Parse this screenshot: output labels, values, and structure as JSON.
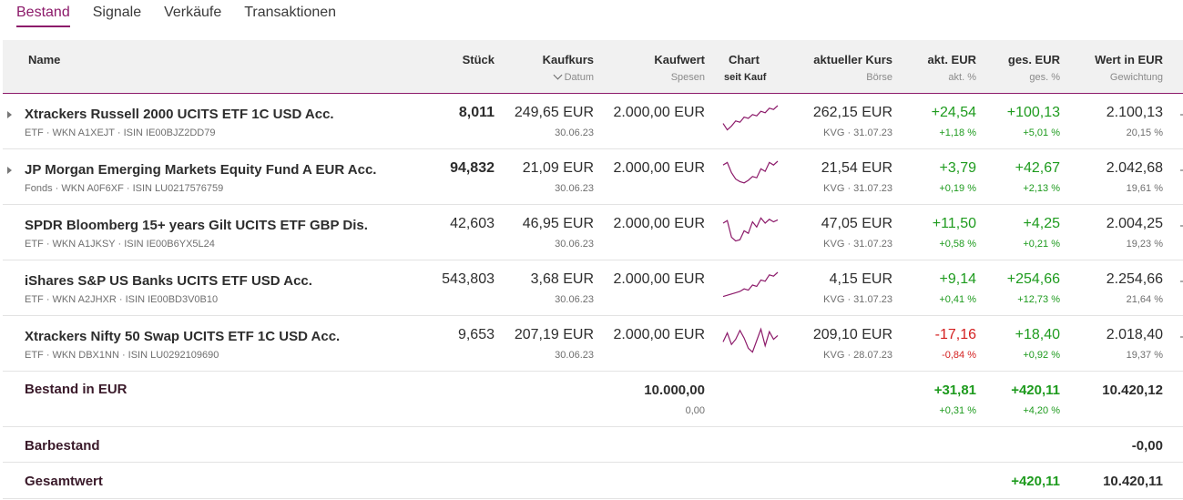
{
  "tabs": [
    {
      "label": "Bestand",
      "active": true
    },
    {
      "label": "Signale"
    },
    {
      "label": "Verkäufe"
    },
    {
      "label": "Transaktionen"
    }
  ],
  "header": {
    "name": "Name",
    "stueck": "Stück",
    "kaufkurs": "Kaufkurs",
    "datum_sort": "Datum",
    "kaufwert": "Kaufwert",
    "spesen": "Spesen",
    "chart": "Chart",
    "seit_kauf": "seit Kauf",
    "aktueller_kurs": "aktueller Kurs",
    "boerse": "Börse",
    "akt_eur": "akt. EUR",
    "akt_pct": "akt. %",
    "ges_eur": "ges. EUR",
    "ges_pct": "ges. %",
    "wert_eur": "Wert in EUR",
    "gewichtung": "Gewichtung"
  },
  "accent_color": "#8c1a6a",
  "positive_color": "#1e9b1e",
  "negative_color": "#d42020",
  "rows": [
    {
      "name": "Xtrackers Russell 2000 UCITS ETF 1C USD Acc.",
      "meta": "ETF · WKN A1XEJT · ISIN IE00BJZ2DD79",
      "expandable": true,
      "stueck": "8,011",
      "stueck_bold": true,
      "kaufkurs": "249,65 EUR",
      "datum": "30.06.23",
      "kaufwert": "2.000,00 EUR",
      "kurs": "262,15 EUR",
      "boerse": "KVG · 31.07.23",
      "akt_eur": "+24,54",
      "akt_pct": "+1,18 %",
      "ges_eur": "+100,13",
      "ges_pct": "+5,01 %",
      "wert": "2.100,13",
      "gewichtung": "20,15 %",
      "spark": [
        0.3,
        0.05,
        0.2,
        0.4,
        0.35,
        0.55,
        0.5,
        0.65,
        0.6,
        0.78,
        0.72,
        0.9,
        0.85,
        1.0
      ]
    },
    {
      "name": "JP Morgan Emerging Markets Equity Fund A EUR Acc.",
      "meta": "Fonds · WKN A0F6XF · ISIN LU0217576759",
      "expandable": true,
      "stueck": "94,832",
      "stueck_bold": true,
      "kaufkurs": "21,09 EUR",
      "datum": "30.06.23",
      "kaufwert": "2.000,00 EUR",
      "kurs": "21,54 EUR",
      "boerse": "KVG · 31.07.23",
      "akt_eur": "+3,79",
      "akt_pct": "+0,19 %",
      "ges_eur": "+42,67",
      "ges_pct": "+2,13 %",
      "wert": "2.042,68",
      "gewichtung": "19,61 %",
      "spark": [
        0.85,
        0.95,
        0.55,
        0.3,
        0.2,
        0.15,
        0.25,
        0.4,
        0.35,
        0.7,
        0.6,
        0.95,
        0.85,
        1.0
      ]
    },
    {
      "name": "SPDR Bloomberg 15+ years Gilt UCITS ETF GBP Dis.",
      "meta": "ETF · WKN A1JKSY · ISIN IE00B6YX5L24",
      "expandable": false,
      "stueck": "42,603",
      "stueck_bold": false,
      "kaufkurs": "46,95 EUR",
      "datum": "30.06.23",
      "kaufwert": "2.000,00 EUR",
      "kurs": "47,05 EUR",
      "boerse": "KVG · 31.07.23",
      "akt_eur": "+11,50",
      "akt_pct": "+0,58 %",
      "ges_eur": "+4,25",
      "ges_pct": "+0,21 %",
      "wert": "2.004,25",
      "gewichtung": "19,23 %",
      "spark": [
        0.75,
        0.85,
        0.2,
        0.05,
        0.1,
        0.45,
        0.35,
        0.8,
        0.6,
        0.95,
        0.75,
        0.9,
        0.8,
        0.88
      ]
    },
    {
      "name": "iShares S&P US Banks UCITS ETF USD Acc.",
      "meta": "ETF · WKN A2JHXR · ISIN IE00BD3V0B10",
      "expandable": false,
      "stueck": "543,803",
      "stueck_bold": false,
      "kaufkurs": "3,68 EUR",
      "datum": "30.06.23",
      "kaufwert": "2.000,00 EUR",
      "kurs": "4,15 EUR",
      "boerse": "KVG · 31.07.23",
      "akt_eur": "+9,14",
      "akt_pct": "+0,41 %",
      "ges_eur": "+254,66",
      "ges_pct": "+12,73 %",
      "wert": "2.254,66",
      "gewichtung": "21,64 %",
      "spark": [
        0.05,
        0.1,
        0.15,
        0.2,
        0.25,
        0.35,
        0.3,
        0.5,
        0.45,
        0.7,
        0.65,
        0.9,
        0.85,
        1.0
      ]
    },
    {
      "name": "Xtrackers Nifty 50 Swap UCITS ETF 1C USD Acc.",
      "meta": "ETF · WKN DBX1NN · ISIN LU0292109690",
      "expandable": false,
      "stueck": "9,653",
      "stueck_bold": false,
      "kaufkurs": "207,19 EUR",
      "datum": "30.06.23",
      "kaufwert": "2.000,00 EUR",
      "kurs": "209,10 EUR",
      "boerse": "KVG · 28.07.23",
      "akt_eur": "-17,16",
      "akt_pct": "-0,84 %",
      "ges_eur": "+18,40",
      "ges_pct": "+0,92 %",
      "wert": "2.018,40",
      "gewichtung": "19,37 %",
      "spark": [
        0.45,
        0.8,
        0.35,
        0.55,
        0.9,
        0.6,
        0.2,
        0.05,
        0.5,
        0.95,
        0.3,
        0.85,
        0.55,
        0.7
      ]
    }
  ],
  "summary": {
    "bestand_label": "Bestand in EUR",
    "bestand_kaufwert": "10.000,00",
    "bestand_spesen": "0,00",
    "bestand_akt_eur": "+31,81",
    "bestand_akt_pct": "+0,31 %",
    "bestand_ges_eur": "+420,11",
    "bestand_ges_pct": "+4,20 %",
    "bestand_wert": "10.420,12",
    "barbestand_label": "Barbestand",
    "barbestand_wert": "-0,00",
    "gesamt_label": "Gesamtwert",
    "gesamt_ges_eur": "+420,11",
    "gesamt_wert": "10.420,11"
  }
}
